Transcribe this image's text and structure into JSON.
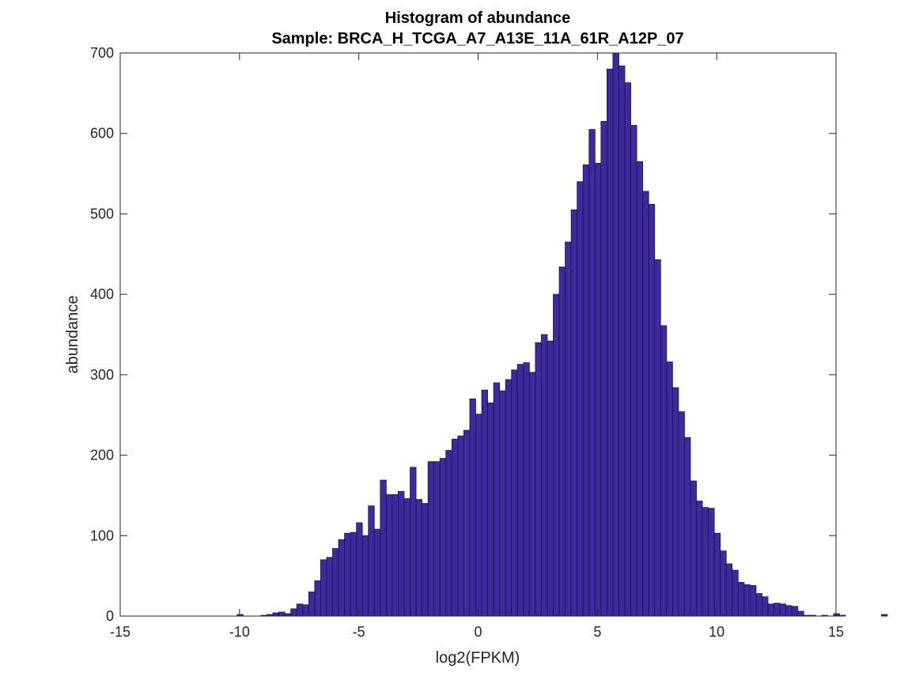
{
  "chart_data": {
    "type": "bar",
    "title": "Histogram of abundance",
    "subtitle": "Sample: BRCA_H_TCGA_A7_A13E_11A_61R_A12P_07",
    "xlabel": "log2(FPKM)",
    "ylabel": "abundance",
    "xlim": [
      -15,
      15
    ],
    "ylim": [
      0,
      700
    ],
    "xticks": [
      -15,
      -10,
      -5,
      0,
      5,
      10,
      15
    ],
    "yticks": [
      0,
      100,
      200,
      300,
      400,
      500,
      600,
      700
    ],
    "grid": false,
    "bar_color": "#3f28a0",
    "edge_color": "#1a1a2e",
    "bin_edges_start": -10.1,
    "bin_width": 0.25,
    "counts": [
      2,
      0,
      0,
      0,
      1,
      2,
      4,
      5,
      3,
      9,
      15,
      14,
      30,
      44,
      70,
      73,
      84,
      95,
      103,
      104,
      116,
      100,
      137,
      108,
      169,
      151,
      151,
      155,
      146,
      185,
      145,
      140,
      192,
      192,
      196,
      206,
      220,
      224,
      231,
      270,
      251,
      281,
      265,
      290,
      280,
      294,
      306,
      313,
      315,
      303,
      340,
      350,
      342,
      400,
      434,
      465,
      505,
      540,
      561,
      605,
      563,
      615,
      680,
      700,
      684,
      663,
      610,
      565,
      528,
      512,
      443,
      361,
      316,
      284,
      254,
      222,
      168,
      143,
      135,
      134,
      103,
      81,
      65,
      57,
      42,
      39,
      38,
      28,
      24,
      15,
      16,
      15,
      13,
      12,
      6,
      1,
      1,
      0,
      1,
      0,
      3,
      1,
      0,
      0,
      0,
      0,
      0,
      0,
      2
    ]
  }
}
